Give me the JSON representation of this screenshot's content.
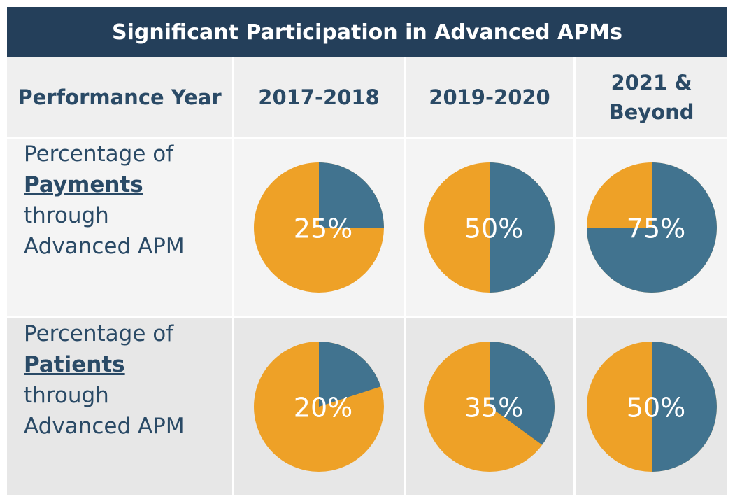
{
  "title": "Significant Participation in Advanced APMs",
  "table": {
    "headers": [
      "Performance Year",
      "2017-2018",
      "2019-2020",
      "2021 & Beyond"
    ],
    "rows": [
      {
        "label": [
          "Percentage of",
          "Payments",
          "through",
          "Advanced APM"
        ],
        "values": [
          25,
          50,
          75
        ],
        "value_labels": [
          "25%",
          "50%",
          "75%"
        ]
      },
      {
        "label": [
          "Percentage of",
          "Patients",
          "through",
          "Advanced APM"
        ],
        "values": [
          20,
          35,
          50
        ],
        "value_labels": [
          "20%",
          "35%",
          "50%"
        ]
      }
    ],
    "colors": {
      "share": "#41738f",
      "rest": "#eea127"
    }
  }
}
